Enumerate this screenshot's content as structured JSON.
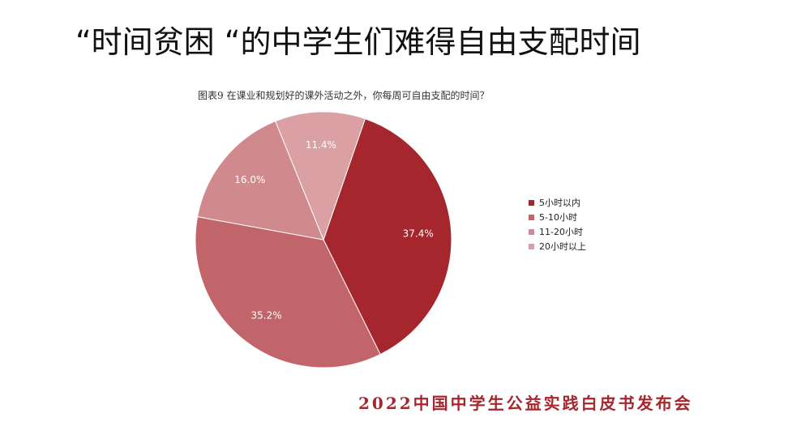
{
  "slide": {
    "title": "“时间贫困 “的中学生们难得自由支配时间",
    "footer": "2022中国中学生公益实践白皮书发布会"
  },
  "chart_data": {
    "type": "pie",
    "title": "图表9  在课业和规划好的课外活动之外，你每周可自由支配的时间？",
    "categories": [
      "5小时以内",
      "5-10小时",
      "11-20小时",
      "20小时以上"
    ],
    "values": [
      37.4,
      35.2,
      16.0,
      11.4
    ],
    "value_labels": [
      "37.4%",
      "35.2%",
      "16.0%",
      "11.4%"
    ],
    "colors": [
      "#a6262d",
      "#c2656a",
      "#d08a8e",
      "#daa0a3"
    ],
    "start_angle_deg": 19,
    "direction": "clockwise",
    "legend_position": "right"
  }
}
